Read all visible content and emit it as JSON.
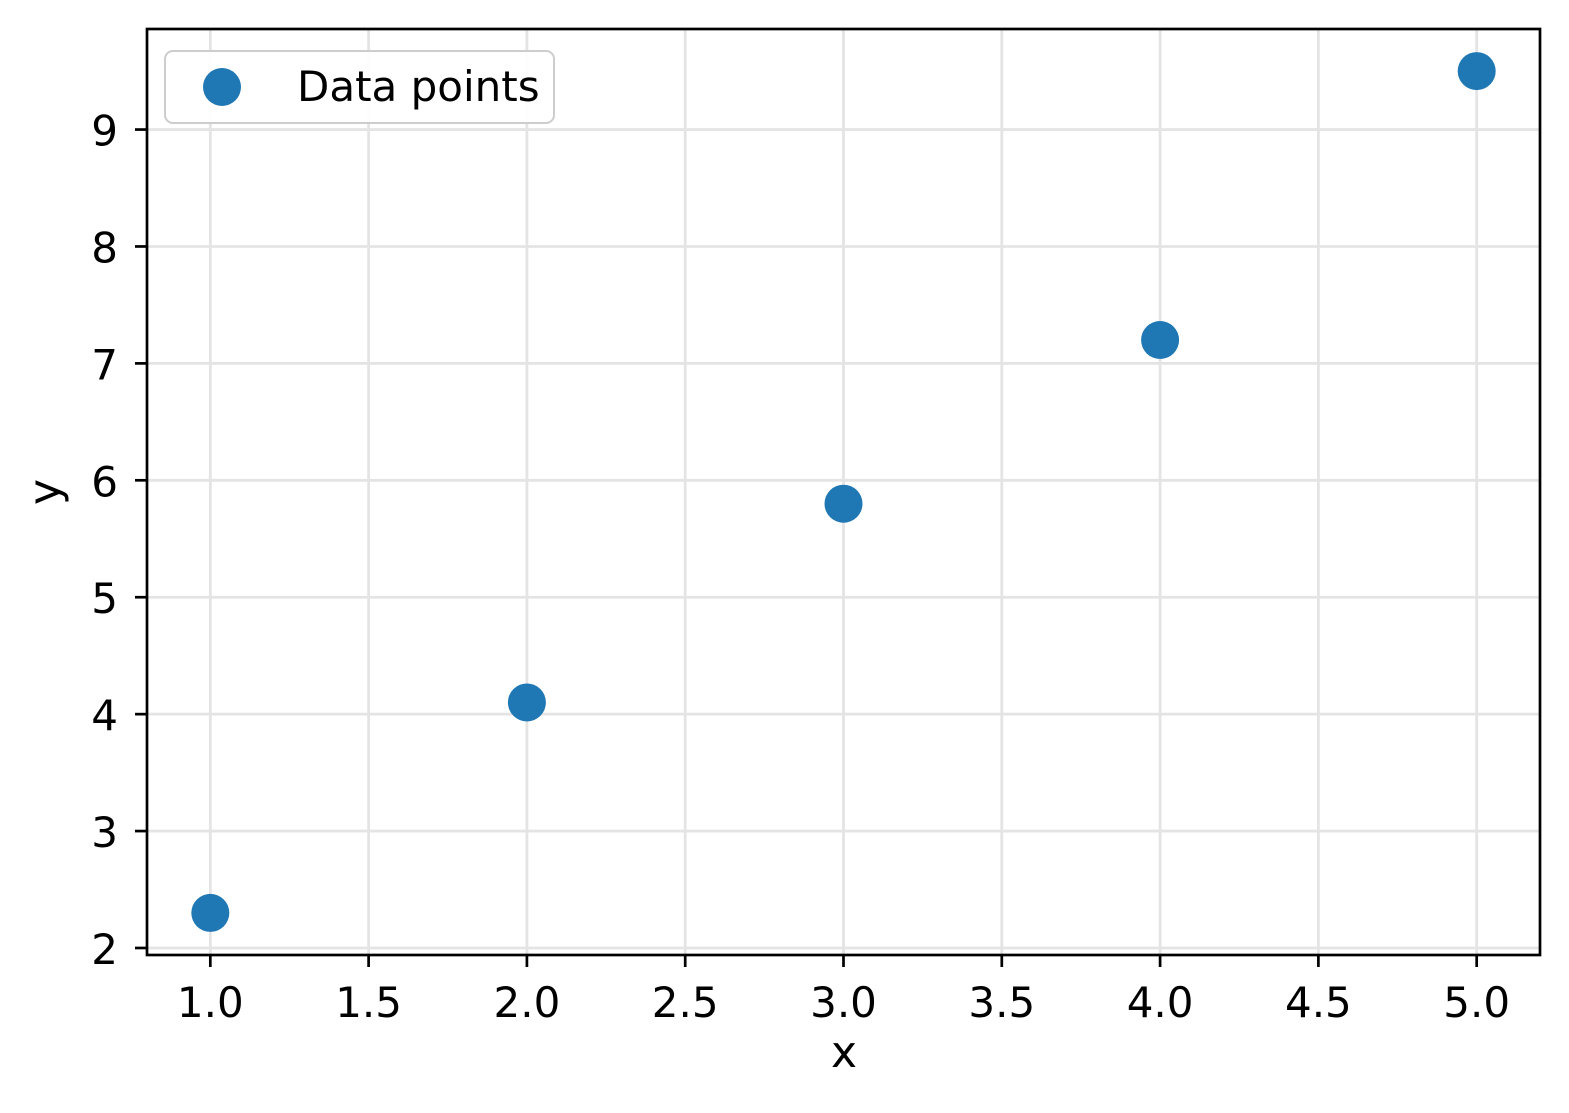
{
  "chart_data": {
    "type": "scatter",
    "title": "",
    "xlabel": "x",
    "ylabel": "y",
    "series": [
      {
        "name": "Data points",
        "x": [
          1.0,
          2.0,
          3.0,
          4.0,
          5.0
        ],
        "y": [
          2.3,
          4.1,
          5.8,
          7.2,
          9.5
        ],
        "color": "#1f77b4",
        "marker": "circle"
      }
    ],
    "xlim": [
      0.8,
      5.2
    ],
    "ylim": [
      1.94,
      9.86
    ],
    "xticks": [
      1.0,
      1.5,
      2.0,
      2.5,
      3.0,
      3.5,
      4.0,
      4.5,
      5.0
    ],
    "xtick_labels": [
      "1.0",
      "1.5",
      "2.0",
      "2.5",
      "3.0",
      "3.5",
      "4.0",
      "4.5",
      "5.0"
    ],
    "yticks": [
      2,
      3,
      4,
      5,
      6,
      7,
      8,
      9
    ],
    "ytick_labels": [
      "2",
      "3",
      "4",
      "5",
      "6",
      "7",
      "8",
      "9"
    ],
    "grid": true,
    "grid_color": "#e4e4e4",
    "axis_color": "#000000",
    "text_color": "#000000",
    "background_color": "#ffffff",
    "legend_position": "upper left"
  },
  "legend": {
    "label": "Data points"
  }
}
